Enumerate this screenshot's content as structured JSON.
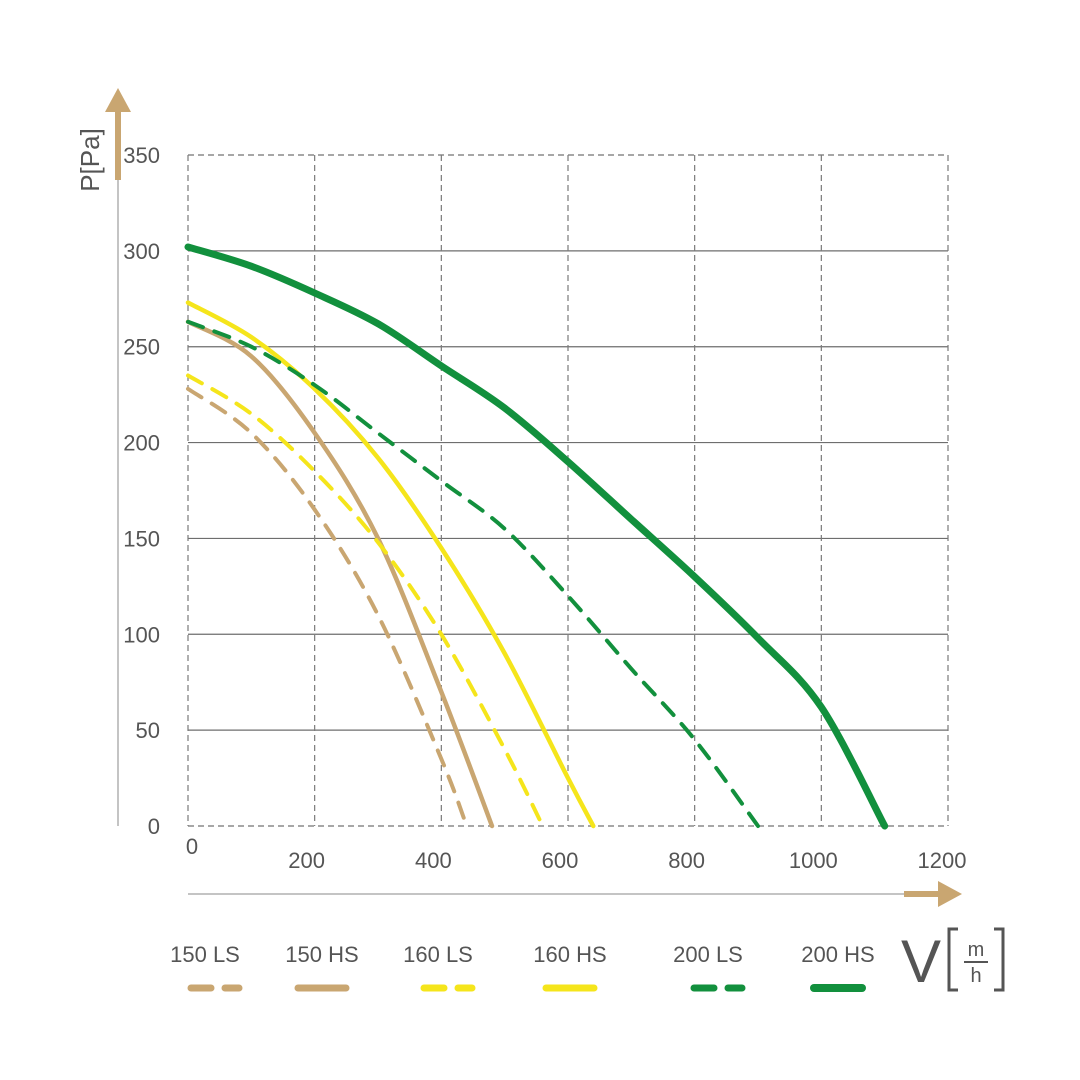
{
  "chart_data": {
    "type": "line",
    "ylabel": "P[Pa]",
    "xlabel": "V",
    "xunit_num": "m",
    "xunit_den": "h",
    "xlim": [
      0,
      1200
    ],
    "ylim": [
      0,
      350
    ],
    "x_ticks": [
      "0",
      "200",
      "400",
      "600",
      "800",
      "1000",
      "1200"
    ],
    "y_ticks": [
      "0",
      "50",
      "100",
      "150",
      "200",
      "250",
      "300",
      "350"
    ],
    "grid": true,
    "legend_position": "bottom",
    "series": [
      {
        "name": "150 LS",
        "color": "#c9a671",
        "style": "dashed",
        "x": [
          0,
          100,
          200,
          300,
          400,
          440
        ],
        "y": [
          228,
          205,
          165,
          110,
          35,
          0
        ]
      },
      {
        "name": "150 HS",
        "color": "#c9a671",
        "style": "solid",
        "x": [
          0,
          100,
          200,
          300,
          400,
          480
        ],
        "y": [
          263,
          245,
          205,
          150,
          70,
          0
        ]
      },
      {
        "name": "160 LS",
        "color": "#f5e51b",
        "style": "dashed",
        "x": [
          0,
          100,
          200,
          300,
          400,
          500,
          560
        ],
        "y": [
          235,
          215,
          185,
          148,
          100,
          40,
          0
        ]
      },
      {
        "name": "160 HS",
        "color": "#f5e51b",
        "style": "solid",
        "x": [
          0,
          100,
          200,
          300,
          400,
          500,
          600,
          640
        ],
        "y": [
          273,
          255,
          228,
          192,
          145,
          90,
          25,
          0
        ]
      },
      {
        "name": "200 LS",
        "color": "#12903d",
        "style": "dashed",
        "x": [
          0,
          100,
          200,
          300,
          400,
          500,
          600,
          700,
          800,
          900
        ],
        "y": [
          263,
          250,
          230,
          205,
          180,
          155,
          120,
          82,
          45,
          0
        ]
      },
      {
        "name": "200 HS",
        "color": "#12903d",
        "style": "solid",
        "x": [
          0,
          100,
          200,
          300,
          400,
          500,
          600,
          700,
          800,
          900,
          1000,
          1100
        ],
        "y": [
          302,
          292,
          278,
          262,
          240,
          218,
          190,
          160,
          130,
          98,
          62,
          0
        ]
      }
    ]
  }
}
